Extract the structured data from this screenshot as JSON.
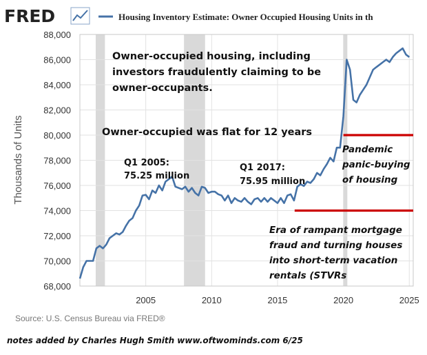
{
  "header": {
    "logo_text": "FRED",
    "series_title": "Housing Inventory Estimate: Owner Occupied Housing Units in th"
  },
  "source": "Source: U.S. Census Bureau via FRED®",
  "footer_note": "notes added by Charles Hugh Smith  www.oftwominds.com    6/25",
  "colors": {
    "line": "#4572a7",
    "recession": "#d9d9d9",
    "annotation_line": "#cc0000"
  },
  "annotations": {
    "main": [
      "Owner-occupied housing, including",
      "investors fraudulently claiming to be",
      "owner-occupants."
    ],
    "flat": "Owner-occupied was flat for 12 years",
    "q1_2005": [
      "Q1 2005:",
      "75.25 million"
    ],
    "q1_2017": [
      "Q1 2017:",
      "75.95 million"
    ],
    "pandemic": [
      "Pandemic",
      "panic-buying",
      "of housing"
    ],
    "era": [
      "Era of rampant mortgage",
      "fraud and turning houses",
      "into short-term vacation",
      "rentals (STVRs"
    ]
  },
  "chart_data": {
    "type": "line",
    "title": "Housing Inventory Estimate: Owner Occupied Housing Units in th",
    "ylabel": "Thousands of Units",
    "xlabel": "",
    "xlim": [
      2000.0,
      2025.3
    ],
    "ylim": [
      68000,
      88000
    ],
    "x_ticks": [
      2005,
      2010,
      2015,
      2020,
      2025
    ],
    "y_ticks": [
      68000,
      70000,
      72000,
      74000,
      76000,
      78000,
      80000,
      82000,
      84000,
      86000,
      88000
    ],
    "y_tick_labels": [
      "68,000",
      "70,000",
      "72,000",
      "74,000",
      "76,000",
      "78,000",
      "80,000",
      "82,000",
      "84,000",
      "86,000",
      "88,000"
    ],
    "grid": true,
    "recessions": [
      [
        2001.2,
        2001.9
      ],
      [
        2007.9,
        2009.5
      ],
      [
        2020.0,
        2020.3
      ]
    ],
    "reference_lines": [
      80000,
      74000
    ],
    "series": [
      {
        "values": [
          [
            2000.0,
            68600
          ],
          [
            2000.25,
            69500
          ],
          [
            2000.5,
            70000
          ],
          [
            2000.75,
            70000
          ],
          [
            2001.0,
            70000
          ],
          [
            2001.25,
            71000
          ],
          [
            2001.5,
            71200
          ],
          [
            2001.75,
            71000
          ],
          [
            2002.0,
            71300
          ],
          [
            2002.25,
            71800
          ],
          [
            2002.5,
            72000
          ],
          [
            2002.75,
            72200
          ],
          [
            2003.0,
            72100
          ],
          [
            2003.25,
            72300
          ],
          [
            2003.5,
            72800
          ],
          [
            2003.75,
            73200
          ],
          [
            2004.0,
            73400
          ],
          [
            2004.25,
            74000
          ],
          [
            2004.5,
            74400
          ],
          [
            2004.75,
            75200
          ],
          [
            2005.0,
            75250
          ],
          [
            2005.25,
            74900
          ],
          [
            2005.5,
            75600
          ],
          [
            2005.75,
            75400
          ],
          [
            2006.0,
            76000
          ],
          [
            2006.25,
            75600
          ],
          [
            2006.5,
            76300
          ],
          [
            2006.75,
            76500
          ],
          [
            2007.0,
            76700
          ],
          [
            2007.25,
            75900
          ],
          [
            2007.5,
            75800
          ],
          [
            2007.75,
            75700
          ],
          [
            2008.0,
            75900
          ],
          [
            2008.25,
            75500
          ],
          [
            2008.5,
            75800
          ],
          [
            2008.75,
            75400
          ],
          [
            2009.0,
            75200
          ],
          [
            2009.25,
            75900
          ],
          [
            2009.5,
            75800
          ],
          [
            2009.75,
            75400
          ],
          [
            2010.0,
            75500
          ],
          [
            2010.25,
            75500
          ],
          [
            2010.5,
            75300
          ],
          [
            2010.75,
            75200
          ],
          [
            2011.0,
            74800
          ],
          [
            2011.25,
            75200
          ],
          [
            2011.5,
            74600
          ],
          [
            2011.75,
            75000
          ],
          [
            2012.0,
            74800
          ],
          [
            2012.25,
            74700
          ],
          [
            2012.5,
            75000
          ],
          [
            2012.75,
            74700
          ],
          [
            2013.0,
            74500
          ],
          [
            2013.25,
            74900
          ],
          [
            2013.5,
            75000
          ],
          [
            2013.75,
            74700
          ],
          [
            2014.0,
            75000
          ],
          [
            2014.25,
            74700
          ],
          [
            2014.5,
            75000
          ],
          [
            2014.75,
            74800
          ],
          [
            2015.0,
            74600
          ],
          [
            2015.25,
            75000
          ],
          [
            2015.5,
            74600
          ],
          [
            2015.75,
            75200
          ],
          [
            2016.0,
            75300
          ],
          [
            2016.25,
            74800
          ],
          [
            2016.5,
            75900
          ],
          [
            2016.75,
            76100
          ],
          [
            2017.0,
            75950
          ],
          [
            2017.25,
            76300
          ],
          [
            2017.5,
            76200
          ],
          [
            2017.75,
            76500
          ],
          [
            2018.0,
            77000
          ],
          [
            2018.25,
            76800
          ],
          [
            2018.5,
            77300
          ],
          [
            2018.75,
            77700
          ],
          [
            2019.0,
            78200
          ],
          [
            2019.25,
            77900
          ],
          [
            2019.5,
            79000
          ],
          [
            2019.75,
            79000
          ],
          [
            2020.0,
            81500
          ],
          [
            2020.25,
            86000
          ],
          [
            2020.5,
            85200
          ],
          [
            2020.75,
            82800
          ],
          [
            2021.0,
            82600
          ],
          [
            2021.25,
            83200
          ],
          [
            2021.5,
            83600
          ],
          [
            2021.75,
            84000
          ],
          [
            2022.0,
            84600
          ],
          [
            2022.25,
            85200
          ],
          [
            2022.5,
            85400
          ],
          [
            2022.75,
            85600
          ],
          [
            2023.0,
            85800
          ],
          [
            2023.25,
            86000
          ],
          [
            2023.5,
            85800
          ],
          [
            2023.75,
            86200
          ],
          [
            2024.0,
            86500
          ],
          [
            2024.25,
            86700
          ],
          [
            2024.5,
            86900
          ],
          [
            2024.75,
            86400
          ],
          [
            2025.0,
            86200
          ]
        ]
      }
    ]
  }
}
